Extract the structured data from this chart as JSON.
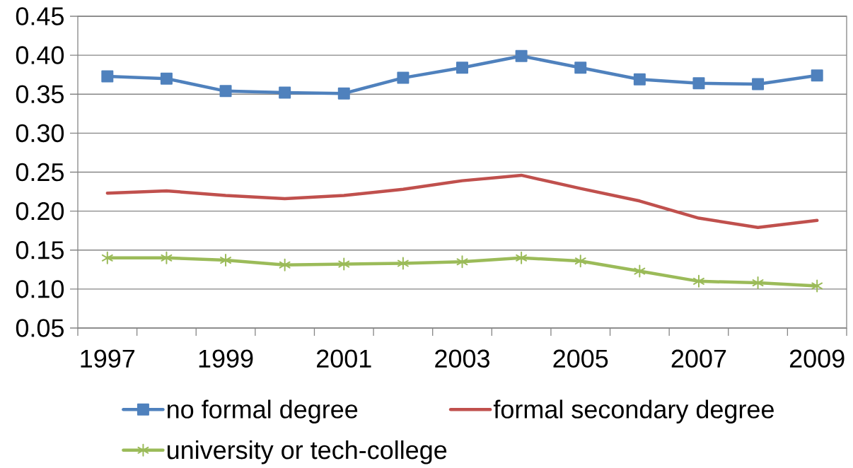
{
  "chart_data": {
    "type": "line",
    "categories": [
      "1997",
      null,
      "1999",
      null,
      "2001",
      null,
      "2003",
      null,
      "2005",
      null,
      "2007",
      null,
      "2009"
    ],
    "series": [
      {
        "name": "no formal degree",
        "color": "#4f81bd",
        "marker": "square",
        "values": [
          0.373,
          0.37,
          0.354,
          0.352,
          0.351,
          0.371,
          0.384,
          0.399,
          0.384,
          0.369,
          0.364,
          0.363,
          0.374
        ]
      },
      {
        "name": "formal secondary degree",
        "color": "#c0504d",
        "marker": "none",
        "values": [
          0.223,
          0.226,
          0.22,
          0.216,
          0.22,
          0.228,
          0.239,
          0.246,
          0.229,
          0.213,
          0.191,
          0.179,
          0.188
        ]
      },
      {
        "name": "university or tech-college",
        "color": "#9bbb59",
        "marker": "cross",
        "values": [
          0.14,
          0.14,
          0.137,
          0.131,
          0.132,
          0.133,
          0.135,
          0.14,
          0.136,
          0.123,
          0.11,
          0.108,
          0.104
        ]
      }
    ],
    "ylim": [
      0.05,
      0.45
    ],
    "yticks": [
      0.05,
      {
        "value": 0.1,
        "label": "0.10"
      },
      0.15,
      {
        "value": 0.2,
        "label": "0.20"
      },
      0.25,
      {
        "value": 0.3,
        "label": "0.30"
      },
      0.35,
      {
        "value": 0.4,
        "label": "0.40"
      },
      0.45
    ],
    "grid": "y",
    "legend": "bottom"
  }
}
